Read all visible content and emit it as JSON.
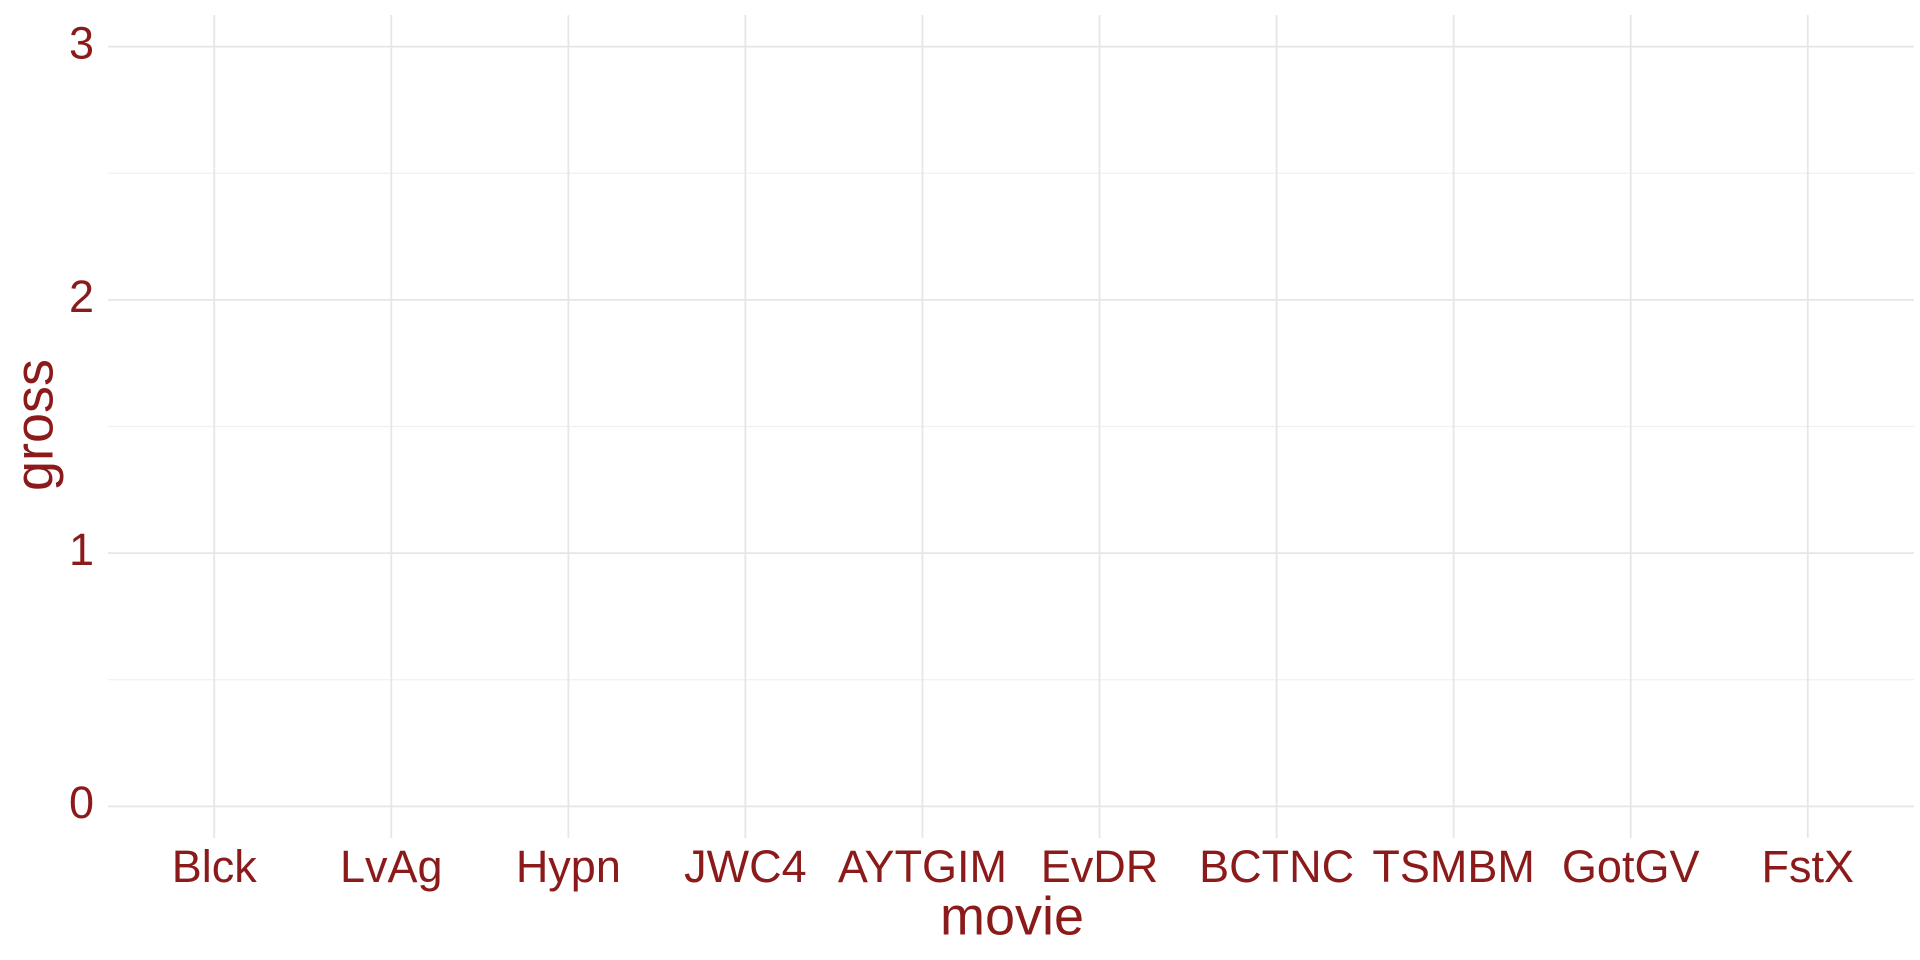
{
  "chart_data": {
    "type": "bar",
    "x_label": "movie",
    "y_label": "gross",
    "categories": [
      "Blck",
      "LvAg",
      "Hypn",
      "JWC4",
      "AYTGIM",
      "EvDR",
      "BCTNC",
      "TSMBM",
      "GotGV",
      "FstX"
    ],
    "ylim": [
      -0.125,
      3.125
    ],
    "yticks": [
      0,
      1,
      2,
      3
    ],
    "minor_yticks": [
      0.5,
      1.5,
      2.5
    ],
    "grid": true
  }
}
